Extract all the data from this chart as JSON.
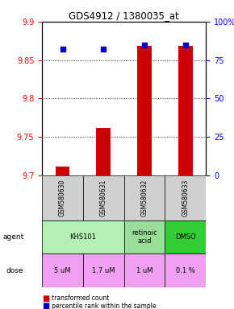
{
  "title": "GDS4912 / 1380035_at",
  "samples": [
    "GSM580630",
    "GSM580631",
    "GSM580632",
    "GSM580633"
  ],
  "red_values": [
    9.712,
    9.762,
    9.868,
    9.868
  ],
  "blue_values": [
    82,
    82,
    85,
    85
  ],
  "ylim_left": [
    9.7,
    9.9
  ],
  "ylim_right": [
    0,
    100
  ],
  "yticks_left": [
    9.7,
    9.75,
    9.8,
    9.85,
    9.9
  ],
  "yticks_right": [
    0,
    25,
    50,
    75,
    100
  ],
  "ytick_labels_right": [
    "0",
    "25",
    "50",
    "75",
    "100%"
  ],
  "agent_labels": [
    "KHS101",
    "KHS101",
    "retinoic\nacid",
    "DMSO"
  ],
  "agent_spans": [
    [
      0,
      1
    ],
    [
      2
    ],
    [
      3
    ]
  ],
  "agent_texts": [
    "KHS101",
    "retinoic\nacid",
    "DMSO"
  ],
  "agent_colors": [
    "#b3f0b3",
    "#c8e6c8",
    "#33cc33"
  ],
  "dose_labels": [
    "5 uM",
    "1.7 uM",
    "1 uM",
    "0.1 %"
  ],
  "dose_color": "#f0a0f0",
  "sample_bg": "#d0d0d0",
  "bar_color_red": "#cc0000",
  "bar_color_blue": "#0000cc",
  "legend_red": "transformed count",
  "legend_blue": "percentile rank within the sample"
}
